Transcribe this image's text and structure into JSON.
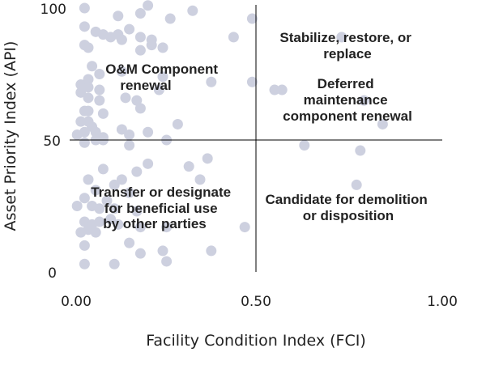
{
  "chart_data": {
    "type": "scatter",
    "title": "",
    "xlabel": "Facility Condition Index (FCI)",
    "ylabel": "Asset Priority Index (API)",
    "xlim": [
      0,
      1
    ],
    "ylim": [
      0,
      100
    ],
    "x_ticks": [
      "0.00",
      "0.50",
      "1.00"
    ],
    "y_ticks": [
      "0",
      "50",
      "100"
    ],
    "x_threshold": 0.5,
    "y_threshold": 50,
    "point_color": "#cdd0df",
    "quadrants": [
      {
        "name": "top-left",
        "lines": [
          "O&M Component",
          "renewal"
        ]
      },
      {
        "name": "top-right",
        "lines": [
          "Stabilize, restore, or",
          "replace"
        ]
      },
      {
        "name": "right-middle",
        "lines": [
          "Deferred",
          "maintenance",
          "component renewal"
        ]
      },
      {
        "name": "bottom-left",
        "lines": [
          "Transfer or designate",
          "for beneficial use",
          "by other parties"
        ]
      },
      {
        "name": "bottom-right",
        "lines": [
          "Candidate for demolition",
          "or disposition"
        ]
      }
    ],
    "points": [
      {
        "x": 0.04,
        "y": 100
      },
      {
        "x": 0.13,
        "y": 97
      },
      {
        "x": 0.21,
        "y": 101
      },
      {
        "x": 0.33,
        "y": 99
      },
      {
        "x": 0.19,
        "y": 98
      },
      {
        "x": 0.27,
        "y": 96
      },
      {
        "x": 0.49,
        "y": 96
      },
      {
        "x": 0.04,
        "y": 93
      },
      {
        "x": 0.07,
        "y": 91
      },
      {
        "x": 0.09,
        "y": 90
      },
      {
        "x": 0.11,
        "y": 89
      },
      {
        "x": 0.13,
        "y": 90
      },
      {
        "x": 0.14,
        "y": 88
      },
      {
        "x": 0.16,
        "y": 92
      },
      {
        "x": 0.19,
        "y": 89
      },
      {
        "x": 0.22,
        "y": 88
      },
      {
        "x": 0.22,
        "y": 86
      },
      {
        "x": 0.25,
        "y": 85
      },
      {
        "x": 0.44,
        "y": 89
      },
      {
        "x": 0.73,
        "y": 89
      },
      {
        "x": 0.04,
        "y": 86
      },
      {
        "x": 0.05,
        "y": 85
      },
      {
        "x": 0.19,
        "y": 84
      },
      {
        "x": 0.06,
        "y": 78
      },
      {
        "x": 0.14,
        "y": 76
      },
      {
        "x": 0.08,
        "y": 75
      },
      {
        "x": 0.05,
        "y": 73
      },
      {
        "x": 0.25,
        "y": 74
      },
      {
        "x": 0.03,
        "y": 71
      },
      {
        "x": 0.05,
        "y": 70
      },
      {
        "x": 0.08,
        "y": 69
      },
      {
        "x": 0.24,
        "y": 69
      },
      {
        "x": 0.38,
        "y": 72
      },
      {
        "x": 0.49,
        "y": 72
      },
      {
        "x": 0.55,
        "y": 69
      },
      {
        "x": 0.57,
        "y": 69
      },
      {
        "x": 0.03,
        "y": 68
      },
      {
        "x": 0.05,
        "y": 66
      },
      {
        "x": 0.08,
        "y": 65
      },
      {
        "x": 0.15,
        "y": 66
      },
      {
        "x": 0.18,
        "y": 65
      },
      {
        "x": 0.79,
        "y": 65
      },
      {
        "x": 0.04,
        "y": 61
      },
      {
        "x": 0.05,
        "y": 61
      },
      {
        "x": 0.09,
        "y": 60
      },
      {
        "x": 0.19,
        "y": 62
      },
      {
        "x": 0.03,
        "y": 57
      },
      {
        "x": 0.05,
        "y": 57
      },
      {
        "x": 0.06,
        "y": 55
      },
      {
        "x": 0.14,
        "y": 54
      },
      {
        "x": 0.29,
        "y": 56
      },
      {
        "x": 0.84,
        "y": 56
      },
      {
        "x": 0.02,
        "y": 52
      },
      {
        "x": 0.04,
        "y": 53
      },
      {
        "x": 0.07,
        "y": 53
      },
      {
        "x": 0.09,
        "y": 51
      },
      {
        "x": 0.16,
        "y": 52
      },
      {
        "x": 0.21,
        "y": 53
      },
      {
        "x": 0.04,
        "y": 49
      },
      {
        "x": 0.07,
        "y": 50
      },
      {
        "x": 0.09,
        "y": 50
      },
      {
        "x": 0.26,
        "y": 50
      },
      {
        "x": 0.16,
        "y": 48
      },
      {
        "x": 0.63,
        "y": 48
      },
      {
        "x": 0.78,
        "y": 46
      },
      {
        "x": 0.37,
        "y": 43
      },
      {
        "x": 0.21,
        "y": 41
      },
      {
        "x": 0.32,
        "y": 40
      },
      {
        "x": 0.09,
        "y": 39
      },
      {
        "x": 0.18,
        "y": 38
      },
      {
        "x": 0.05,
        "y": 35
      },
      {
        "x": 0.14,
        "y": 35
      },
      {
        "x": 0.35,
        "y": 35
      },
      {
        "x": 0.12,
        "y": 33
      },
      {
        "x": 0.77,
        "y": 33
      },
      {
        "x": 0.07,
        "y": 31
      },
      {
        "x": 0.16,
        "y": 30
      },
      {
        "x": 0.04,
        "y": 28
      },
      {
        "x": 0.1,
        "y": 27
      },
      {
        "x": 0.02,
        "y": 25
      },
      {
        "x": 0.06,
        "y": 25
      },
      {
        "x": 0.08,
        "y": 24
      },
      {
        "x": 0.12,
        "y": 24
      },
      {
        "x": 0.18,
        "y": 23
      },
      {
        "x": 0.04,
        "y": 19
      },
      {
        "x": 0.06,
        "y": 18
      },
      {
        "x": 0.08,
        "y": 19
      },
      {
        "x": 0.11,
        "y": 20
      },
      {
        "x": 0.13,
        "y": 18
      },
      {
        "x": 0.19,
        "y": 17
      },
      {
        "x": 0.26,
        "y": 17
      },
      {
        "x": 0.47,
        "y": 17
      },
      {
        "x": 0.03,
        "y": 15
      },
      {
        "x": 0.05,
        "y": 16
      },
      {
        "x": 0.07,
        "y": 15
      },
      {
        "x": 0.04,
        "y": 10
      },
      {
        "x": 0.16,
        "y": 11
      },
      {
        "x": 0.19,
        "y": 7
      },
      {
        "x": 0.25,
        "y": 8
      },
      {
        "x": 0.38,
        "y": 8
      },
      {
        "x": 0.04,
        "y": 3
      },
      {
        "x": 0.12,
        "y": 3
      },
      {
        "x": 0.26,
        "y": 4
      }
    ]
  }
}
